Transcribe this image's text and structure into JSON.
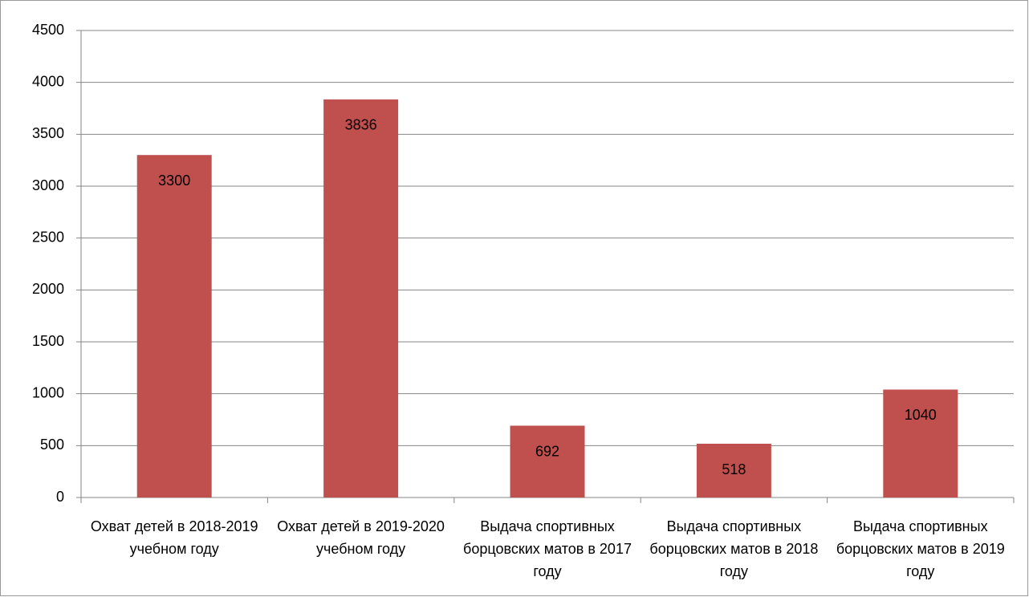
{
  "chart_data": {
    "type": "bar",
    "categories": [
      "Охват детей в 2018-2019 учебном году",
      "Охват детей в 2019-2020 учебном году",
      "Выдача спортивных борцовских матов в 2017 году",
      "Выдача спортивных борцовских матов в 2018 году",
      "Выдача спортивных борцовских матов в 2019 году"
    ],
    "values": [
      3300,
      3836,
      692,
      518,
      1040
    ],
    "color": "#c0504d",
    "ylim": [
      0,
      4500
    ],
    "yticks": [
      0,
      500,
      1000,
      1500,
      2000,
      2500,
      3000,
      3500,
      4000,
      4500
    ],
    "grid": true
  }
}
